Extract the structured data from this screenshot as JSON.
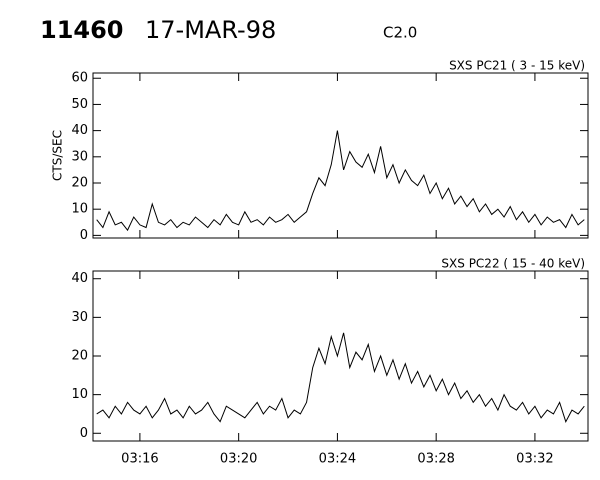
{
  "header": {
    "event": "11460",
    "date": "17-MAR-98",
    "class": "C2.0"
  },
  "chart_data": [
    {
      "type": "line",
      "subtitle": "SXS PC21  (  3 - 15 keV)",
      "y_label": "CTS/SEC",
      "x": [
        14.25,
        14.5,
        14.75,
        15,
        15.25,
        15.5,
        15.75,
        16,
        16.25,
        16.5,
        16.75,
        17,
        17.25,
        17.5,
        17.75,
        18,
        18.25,
        18.5,
        18.75,
        19,
        19.25,
        19.5,
        19.75,
        20,
        20.25,
        20.5,
        20.75,
        21,
        21.25,
        21.5,
        21.75,
        22,
        22.25,
        22.5,
        22.75,
        23,
        23.25,
        23.5,
        23.75,
        24,
        24.25,
        24.5,
        24.75,
        25,
        25.25,
        25.5,
        25.75,
        26,
        26.25,
        26.5,
        26.75,
        27,
        27.25,
        27.5,
        27.75,
        28,
        28.25,
        28.5,
        28.75,
        29,
        29.25,
        29.5,
        29.75,
        30,
        30.25,
        30.5,
        30.75,
        31,
        31.25,
        31.5,
        31.75,
        32,
        32.25,
        32.5,
        32.75,
        33,
        33.25,
        33.5,
        33.75,
        34
      ],
      "values": [
        6,
        3,
        9,
        4,
        5,
        2,
        7,
        4,
        3,
        12,
        5,
        4,
        6,
        3,
        5,
        4,
        7,
        5,
        3,
        6,
        4,
        8,
        5,
        4,
        9,
        5,
        6,
        4,
        7,
        5,
        6,
        8,
        5,
        7,
        9,
        16,
        22,
        19,
        27,
        40,
        25,
        32,
        28,
        26,
        31,
        24,
        34,
        22,
        27,
        20,
        25,
        21,
        19,
        23,
        16,
        20,
        14,
        18,
        12,
        15,
        11,
        14,
        9,
        12,
        8,
        10,
        7,
        11,
        6,
        9,
        5,
        8,
        4,
        7,
        5,
        6,
        3,
        8,
        4,
        6
      ],
      "color": "#000000",
      "xlim": [
        14.1,
        34.15
      ],
      "ylim": [
        -1,
        62
      ],
      "yticks": [
        0,
        10,
        20,
        30,
        40,
        50,
        60
      ]
    },
    {
      "type": "line",
      "subtitle": "SXS PC22  ( 15 - 40 keV)",
      "x": [
        14.25,
        14.5,
        14.75,
        15,
        15.25,
        15.5,
        15.75,
        16,
        16.25,
        16.5,
        16.75,
        17,
        17.25,
        17.5,
        17.75,
        18,
        18.25,
        18.5,
        18.75,
        19,
        19.25,
        19.5,
        19.75,
        20,
        20.25,
        20.5,
        20.75,
        21,
        21.25,
        21.5,
        21.75,
        22,
        22.25,
        22.5,
        22.75,
        23,
        23.25,
        23.5,
        23.75,
        24,
        24.25,
        24.5,
        24.75,
        25,
        25.25,
        25.5,
        25.75,
        26,
        26.25,
        26.5,
        26.75,
        27,
        27.25,
        27.5,
        27.75,
        28,
        28.25,
        28.5,
        28.75,
        29,
        29.25,
        29.5,
        29.75,
        30,
        30.25,
        30.5,
        30.75,
        31,
        31.25,
        31.5,
        31.75,
        32,
        32.25,
        32.5,
        32.75,
        33,
        33.25,
        33.5,
        33.75,
        34
      ],
      "values": [
        5,
        6,
        4,
        7,
        5,
        8,
        6,
        5,
        7,
        4,
        6,
        9,
        5,
        6,
        4,
        7,
        5,
        6,
        8,
        5,
        3,
        7,
        6,
        5,
        4,
        6,
        8,
        5,
        7,
        6,
        9,
        4,
        6,
        5,
        8,
        17,
        22,
        18,
        25,
        20,
        26,
        17,
        21,
        19,
        23,
        16,
        20,
        15,
        19,
        14,
        18,
        13,
        16,
        12,
        15,
        11,
        14,
        10,
        13,
        9,
        11,
        8,
        10,
        7,
        9,
        6,
        10,
        7,
        6,
        8,
        5,
        7,
        4,
        6,
        5,
        8,
        3,
        6,
        5,
        7
      ],
      "color": "#000000",
      "xlim": [
        14.1,
        34.15
      ],
      "ylim": [
        -2,
        42
      ],
      "yticks": [
        0,
        10,
        20,
        30,
        40
      ],
      "xticks": [
        {
          "value": 16,
          "label": "03:16"
        },
        {
          "value": 20,
          "label": "03:20"
        },
        {
          "value": 24,
          "label": "03:24"
        },
        {
          "value": 28,
          "label": "03:28"
        },
        {
          "value": 32,
          "label": "03:32"
        }
      ]
    }
  ]
}
